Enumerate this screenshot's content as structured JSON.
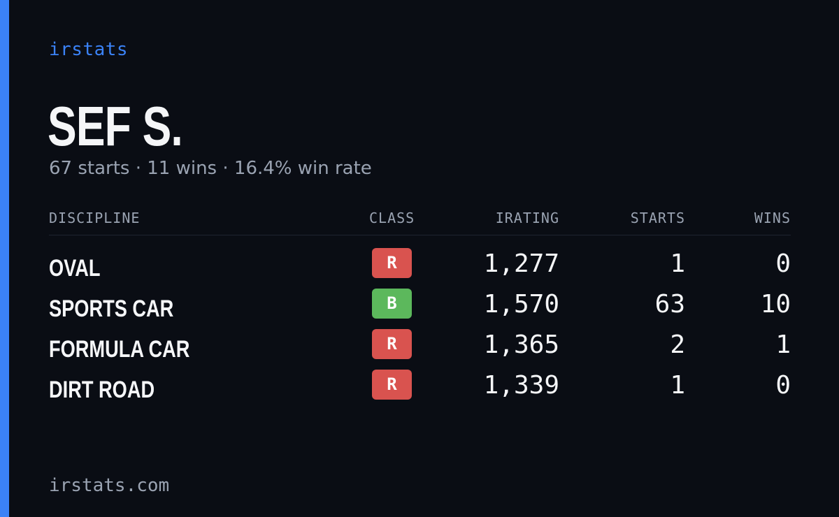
{
  "brand": "irstats",
  "driver": {
    "name": "SEF S.",
    "summary": "67 starts · 11 wins · 16.4% win rate"
  },
  "table": {
    "headers": {
      "discipline": "DISCIPLINE",
      "class": "CLASS",
      "irating": "IRATING",
      "starts": "STARTS",
      "wins": "WINS"
    },
    "rows": [
      {
        "discipline": "OVAL",
        "class": "R",
        "class_color": "#d9534f",
        "irating": "1,277",
        "starts": "1",
        "wins": "0"
      },
      {
        "discipline": "SPORTS CAR",
        "class": "B",
        "class_color": "#5cb85c",
        "irating": "1,570",
        "starts": "63",
        "wins": "10"
      },
      {
        "discipline": "FORMULA CAR",
        "class": "R",
        "class_color": "#d9534f",
        "irating": "1,365",
        "starts": "2",
        "wins": "1"
      },
      {
        "discipline": "DIRT ROAD",
        "class": "R",
        "class_color": "#d9534f",
        "irating": "1,339",
        "starts": "1",
        "wins": "0"
      }
    ]
  },
  "footer": "irstats.com",
  "colors": {
    "accent": "#3b82f6",
    "background": "#0a0d14",
    "text_primary": "#f5f6f8",
    "text_muted": "#9aa3b2"
  }
}
